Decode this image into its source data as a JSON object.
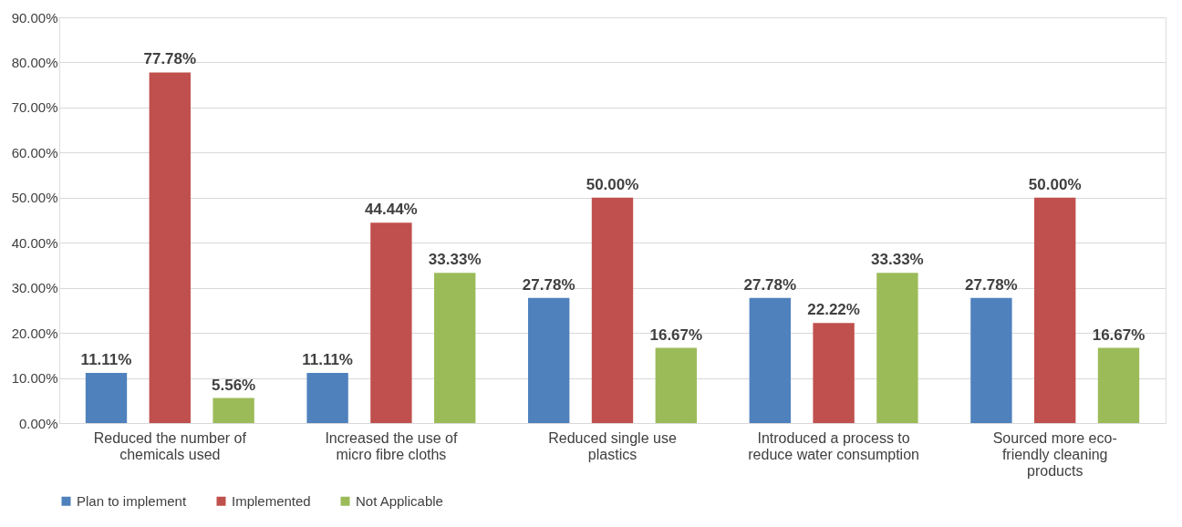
{
  "chart_data": {
    "type": "bar",
    "categories": [
      "Reduced the number of chemicals used",
      "Increased the use of micro fibre cloths",
      "Reduced single use plastics",
      "Introduced a process to reduce water consumption",
      "Sourced more eco-friendly cleaning products"
    ],
    "series": [
      {
        "name": "Plan to implement",
        "color": "#4f81bd",
        "values": [
          11.11,
          11.11,
          27.78,
          27.78,
          27.78
        ],
        "value_labels": [
          "11.11%",
          "11.11%",
          "27.78%",
          "27.78%",
          "27.78%"
        ]
      },
      {
        "name": "Implemented",
        "color": "#c0504d",
        "values": [
          77.78,
          44.44,
          50.0,
          22.22,
          50.0
        ],
        "value_labels": [
          "77.78%",
          "44.44%",
          "50.00%",
          "22.22%",
          "50.00%"
        ]
      },
      {
        "name": "Not Applicable",
        "color": "#9bbb59",
        "values": [
          5.56,
          33.33,
          16.67,
          33.33,
          16.67
        ],
        "value_labels": [
          "5.56%",
          "33.33%",
          "16.67%",
          "33.33%",
          "16.67%"
        ]
      }
    ],
    "ylim": [
      0,
      90
    ],
    "yticks": [
      {
        "value": 0,
        "label": "0.00%"
      },
      {
        "value": 10,
        "label": "10.00%"
      },
      {
        "value": 20,
        "label": "20.00%"
      },
      {
        "value": 30,
        "label": "30.00%"
      },
      {
        "value": 40,
        "label": "40.00%"
      },
      {
        "value": 50,
        "label": "50.00%"
      },
      {
        "value": 60,
        "label": "60.00%"
      },
      {
        "value": 70,
        "label": "70.00%"
      },
      {
        "value": 80,
        "label": "80.00%"
      },
      {
        "value": 90,
        "label": "90.00%"
      }
    ],
    "grid": "y",
    "legend": "bottom"
  }
}
